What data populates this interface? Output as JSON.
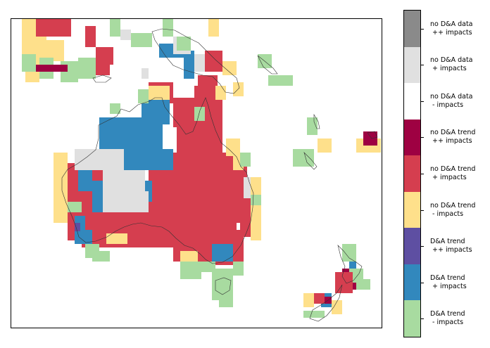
{
  "map": {
    "region": "Australia and Oceania",
    "colors": {
      "cb0": "#a8dba0",
      "cb1": "#3288bd",
      "cb2": "#5e4fa2",
      "cb3": "#fee08b",
      "cb4": "#d53e4f",
      "cb5": "#9e0142",
      "cb6": "#ffffff",
      "cb7": "#e0e0e0",
      "cb8": "#8a8a8a"
    }
  },
  "legend": {
    "items": [
      {
        "label": "no D&A data\n ++ impacts",
        "color": "#8a8a8a"
      },
      {
        "label": "no D&A data\n + impacts",
        "color": "#e0e0e0"
      },
      {
        "label": "no D&A data\n - impacts",
        "color": "#ffffff"
      },
      {
        "label": "no D&A trend\n ++ impacts",
        "color": "#9e0142"
      },
      {
        "label": "no D&A trend\n + impacts",
        "color": "#d53e4f"
      },
      {
        "label": "no D&A trend\n - impacts",
        "color": "#fee08b"
      },
      {
        "label": "D&A trend\n ++ impacts",
        "color": "#5e4fa2"
      },
      {
        "label": "D&A trend\n + impacts",
        "color": "#3288bd"
      },
      {
        "label": "D&A trend\n - impacts",
        "color": "#a8dba0"
      }
    ]
  }
}
